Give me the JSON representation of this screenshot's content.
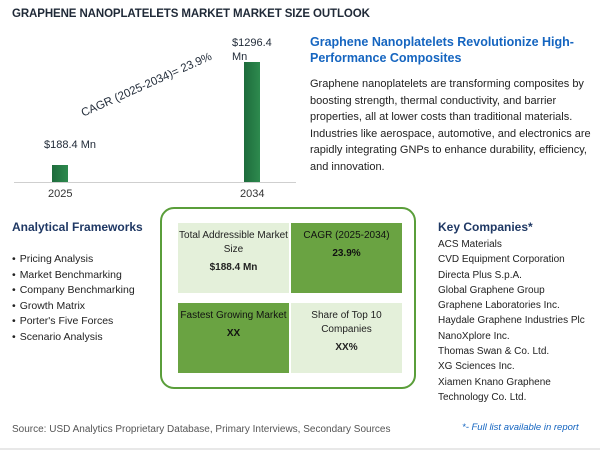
{
  "header": {
    "title": "GRAPHENE NANOPLATELETS MARKET MARKET SIZE OUTLOOK"
  },
  "colors": {
    "bar": "#2d8a4e",
    "title_blue": "#1565c0",
    "panel_border": "#5a9e3a",
    "cell_light": "#e4f0da",
    "cell_dark": "#6aa342"
  },
  "chart_data": {
    "type": "bar",
    "categories": [
      "2025",
      "2034"
    ],
    "values": [
      188.4,
      1296.4
    ],
    "value_labels": [
      "$188.4 Mn",
      "$1296.4 Mn"
    ],
    "annotation": "CAGR (2025-2034)=   23.9%",
    "ylim": [
      0,
      1400
    ],
    "grid": false
  },
  "summary": {
    "title": "Graphene Nanoplatelets Revolutionize High-Performance Composites",
    "body": "Graphene nanoplatelets are transforming composites by boosting strength, thermal conductivity, and barrier properties, all at lower costs than traditional materials. Industries like aerospace, automotive, and electronics are rapidly integrating GNPs to enhance durability, efficiency, and innovation."
  },
  "frameworks": {
    "title": "Analytical Frameworks",
    "items": [
      "Pricing Analysis",
      "Market Benchmarking",
      "Company Benchmarking",
      "Growth Matrix",
      "Porter's Five Forces",
      "Scenario Analysis"
    ]
  },
  "metrics": [
    {
      "label": "Total Addressible Market Size",
      "value": "$188.4 Mn"
    },
    {
      "label": "CAGR (2025-2034)",
      "value": "23.9%"
    },
    {
      "label": "Fastest Growing Market",
      "value": "XX"
    },
    {
      "label": "Share of Top 10 Companies",
      "value": "XX%"
    }
  ],
  "companies": {
    "title": "Key Companies*",
    "items": [
      "ACS Materials",
      "CVD Equipment Corporation",
      "Directa Plus S.p.A.",
      "Global Graphene Group",
      "Graphene Laboratories Inc.",
      "Haydale Graphene Industries Plc",
      "NanoXplore Inc.",
      "Thomas Swan & Co. Ltd.",
      "XG Sciences Inc.",
      "Xiamen Knano Graphene Technology Co. Ltd."
    ],
    "note": "*- Full list available in report"
  },
  "footer": {
    "source": "Source: USD Analytics Proprietary Database, Primary Interviews, Secondary Sources"
  }
}
